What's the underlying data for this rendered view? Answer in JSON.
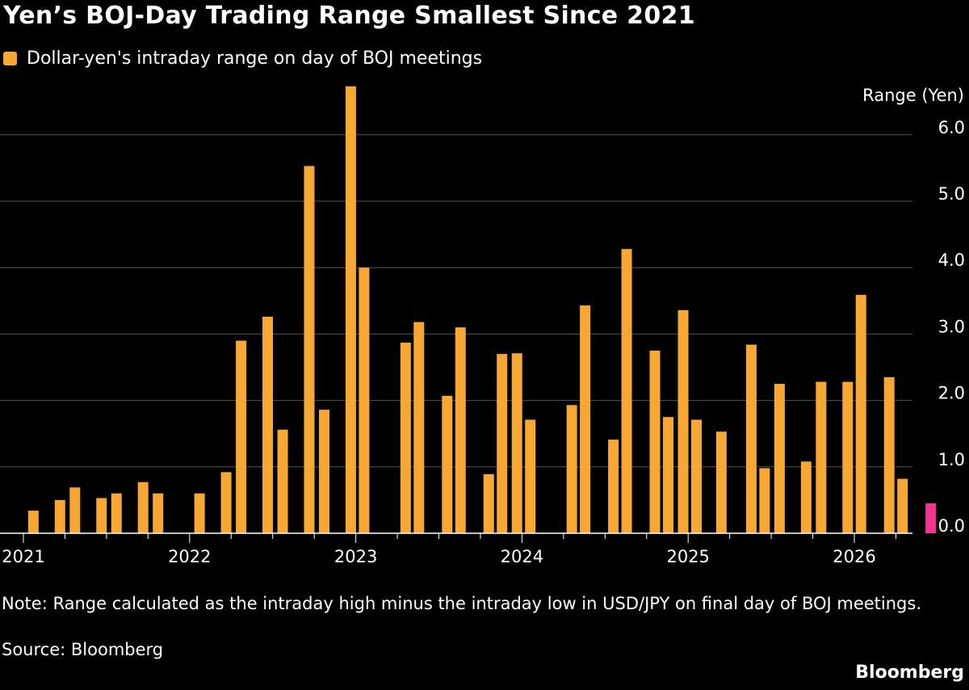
{
  "header": {
    "title": "Yen’s BOJ-Day Trading Range Smallest Since 2021"
  },
  "footer": {
    "note": "Note: Range calculated as the intraday high minus the intraday low in USD/JPY on final day of BOJ meetings.",
    "source": "Source: Bloomberg",
    "brand": "Bloomberg"
  },
  "colors": {
    "bar": "#f7a734",
    "highlight": "#f0368f",
    "background": "#000000",
    "grid": "#555555"
  },
  "chart_data": {
    "type": "bar",
    "legend": {
      "label": "Dollar-yen's intraday range on day of BOJ meetings",
      "position": "top-left"
    },
    "ylabel": "Range (Yen)",
    "ylim": [
      0,
      6.7
    ],
    "yticks": [
      0.0,
      1.0,
      2.0,
      3.0,
      4.0,
      5.0,
      6.0
    ],
    "ytick_labels": [
      "0.0",
      "1.0",
      "2.0",
      "3.0",
      "4.0",
      "5.0",
      "6.0"
    ],
    "xticks": [
      "2021",
      "2022",
      "2023",
      "2024",
      "2025",
      "2026"
    ],
    "grid": true,
    "series": [
      {
        "values": [
          0.34,
          0.5,
          0.69,
          0.53,
          0.6,
          0.77,
          0.6,
          0.6,
          0.92,
          2.9,
          3.26,
          1.56,
          5.53,
          1.86,
          6.73,
          4.0,
          2.87,
          3.18,
          2.07,
          3.1,
          0.89,
          2.7,
          2.71,
          1.71,
          1.93,
          3.43,
          1.41,
          4.28,
          2.75,
          1.75,
          3.36,
          1.71,
          1.53,
          2.84,
          0.98,
          2.25,
          1.08,
          2.28,
          2.28,
          3.59,
          2.35,
          0.82,
          0.45
        ],
        "dates": [
          2021.06,
          2021.22,
          2021.31,
          2021.47,
          2021.56,
          2021.72,
          2021.81,
          2022.06,
          2022.22,
          2022.31,
          2022.47,
          2022.56,
          2022.72,
          2022.81,
          2022.97,
          2023.05,
          2023.3,
          2023.38,
          2023.55,
          2023.63,
          2023.8,
          2023.88,
          2023.97,
          2024.05,
          2024.3,
          2024.38,
          2024.55,
          2024.63,
          2024.8,
          2024.88,
          2024.97,
          2025.05,
          2025.2,
          2025.38,
          2025.46,
          2025.55,
          2025.71,
          2025.8,
          2025.96,
          2026.04,
          2026.21,
          2026.29,
          2026.46
        ],
        "highlight_last": true
      }
    ]
  }
}
